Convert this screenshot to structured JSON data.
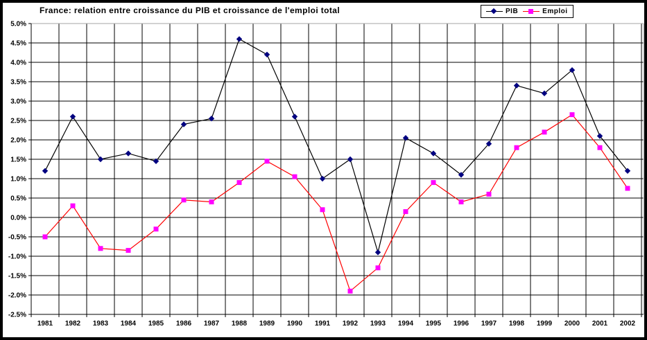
{
  "chart_data": {
    "type": "line",
    "title": "France: relation entre croissance du PIB et croissance de l'emploi total",
    "categories": [
      "1981",
      "1982",
      "1983",
      "1984",
      "1985",
      "1986",
      "1987",
      "1988",
      "1989",
      "1990",
      "1991",
      "1992",
      "1993",
      "1994",
      "1995",
      "1996",
      "1997",
      "1998",
      "1999",
      "2000",
      "2001",
      "2002"
    ],
    "series": [
      {
        "name": "PIB",
        "values": [
          1.2,
          2.6,
          1.5,
          1.65,
          1.45,
          2.4,
          2.55,
          4.6,
          4.2,
          2.6,
          1.0,
          1.5,
          -0.9,
          2.05,
          1.65,
          1.1,
          1.9,
          3.4,
          3.2,
          3.8,
          2.1,
          1.2
        ],
        "line_color": "#000000",
        "marker_color": "#000080",
        "marker": "diamond"
      },
      {
        "name": "Emploi",
        "values": [
          -0.5,
          0.3,
          -0.8,
          -0.85,
          -0.3,
          0.45,
          0.4,
          0.9,
          1.45,
          1.05,
          0.2,
          -1.9,
          -1.3,
          0.15,
          0.9,
          0.4,
          0.6,
          1.8,
          2.2,
          2.65,
          1.8,
          0.75
        ],
        "line_color": "#FF0000",
        "marker_color": "#FF00FF",
        "marker": "square"
      }
    ],
    "xlabel": "",
    "ylabel": "",
    "ylim": [
      -2.5,
      5.0
    ],
    "ytick_step": 0.5,
    "ytick_labels": [
      "5.0%",
      "4.5%",
      "4.0%",
      "3.5%",
      "3.0%",
      "2.5%",
      "2.0%",
      "1.5%",
      "1.0%",
      "0.5%",
      "0.0%",
      "-0.5%",
      "-1.0%",
      "-1.5%",
      "-2.0%",
      "-2.5%"
    ],
    "grid": true,
    "gridline_color": "#000000",
    "plot_border_color": "#A6A6A6",
    "axis_color": "#000000",
    "background": "#FFFFFF",
    "legend_position": "top-right"
  },
  "legend": {
    "items": [
      {
        "label": "PIB"
      },
      {
        "label": "Emploi"
      }
    ]
  }
}
